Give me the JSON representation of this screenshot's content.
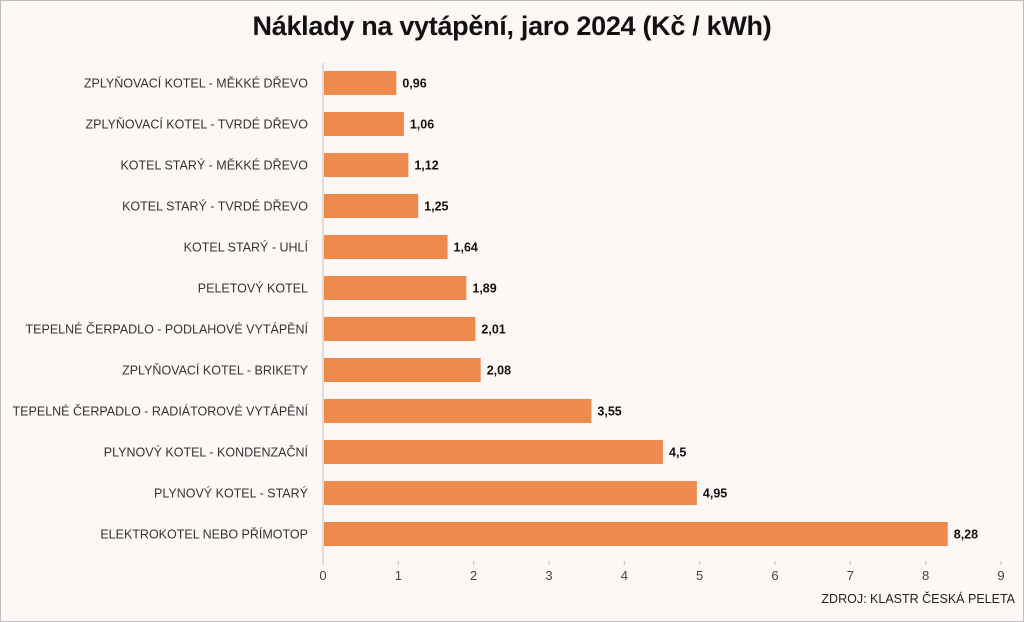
{
  "chart_data": {
    "type": "bar",
    "orientation": "horizontal",
    "title": "Náklady na vytápění, jaro 2024 (Kč / kWh)",
    "source": "ZDROJ: KLASTR ČESKÁ PELETA",
    "categories": [
      "ZPLYŇOVACÍ KOTEL - MĚKKÉ DŘEVO",
      "ZPLYŇOVACÍ KOTEL - TVRDÉ DŘEVO",
      "KOTEL STARÝ - MĚKKÉ DŘEVO",
      "KOTEL STARÝ - TVRDÉ DŘEVO",
      "KOTEL STARÝ - UHLÍ",
      "PELETOVÝ KOTEL",
      "TEPELNÉ ČERPADLO - PODLAHOVÉ VYTÁPĚNÍ",
      "ZPLYŇOVACÍ KOTEL - BRIKETY",
      "TEPELNÉ ČERPADLO - RADIÁTOROVÉ VYTÁPĚNÍ",
      "PLYNOVÝ KOTEL - KONDENZAČNÍ",
      "PLYNOVÝ KOTEL - STARÝ",
      "ELEKTROKOTEL NEBO PŘÍMOTOP"
    ],
    "values": [
      0.96,
      1.06,
      1.12,
      1.25,
      1.64,
      1.89,
      2.01,
      2.08,
      3.55,
      4.5,
      4.95,
      8.28
    ],
    "value_labels": [
      "0,96",
      "1,06",
      "1,12",
      "1,25",
      "1,64",
      "1,89",
      "2,01",
      "2,08",
      "3,55",
      "4,5",
      "4,95",
      "8,28"
    ],
    "xticks": [
      "0",
      "1",
      "2",
      "3",
      "4",
      "5",
      "6",
      "7",
      "8",
      "9"
    ],
    "xlim": [
      0,
      9
    ],
    "bar_color": "#ef8a4f",
    "grid": false,
    "legend": "none"
  }
}
